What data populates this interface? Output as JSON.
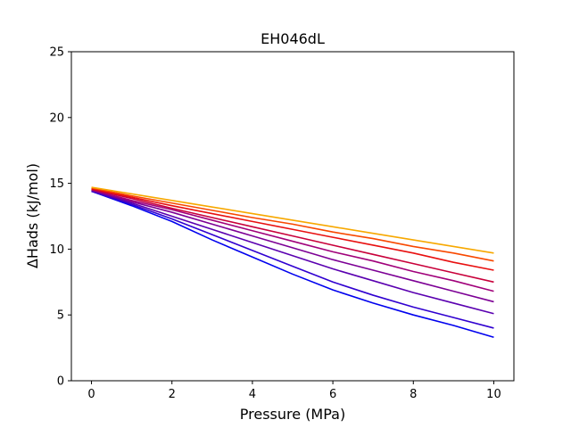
{
  "chart_data": {
    "type": "line",
    "title": "EH046dL",
    "xlabel": "Pressure (MPa)",
    "ylabel": "ΔHads (kJ/mol)",
    "xlim": [
      -0.5,
      10.5
    ],
    "ylim": [
      0,
      25
    ],
    "xticks": [
      0,
      2,
      4,
      6,
      8,
      10
    ],
    "yticks": [
      0,
      5,
      10,
      15,
      20,
      25
    ],
    "grid": false,
    "series": [
      {
        "color": "#0000ee",
        "x": [
          0,
          1,
          2,
          3,
          4,
          5,
          6,
          7,
          8,
          9,
          10
        ],
        "y": [
          14.4,
          13.3,
          12.1,
          10.7,
          9.4,
          8.1,
          6.9,
          5.9,
          5.0,
          4.2,
          3.3
        ]
      },
      {
        "color": "#3000d0",
        "x": [
          0,
          1,
          2,
          3,
          4,
          5,
          6,
          7,
          8,
          9,
          10
        ],
        "y": [
          14.4,
          13.4,
          12.3,
          11.1,
          9.9,
          8.7,
          7.5,
          6.5,
          5.6,
          4.8,
          4.0
        ]
      },
      {
        "color": "#5a00b0",
        "x": [
          0,
          1,
          2,
          3,
          4,
          5,
          6,
          7,
          8,
          9,
          10
        ],
        "y": [
          14.45,
          13.5,
          12.5,
          11.5,
          10.5,
          9.5,
          8.5,
          7.6,
          6.7,
          5.9,
          5.1
        ]
      },
      {
        "color": "#7c0095",
        "x": [
          0,
          1,
          2,
          3,
          4,
          5,
          6,
          7,
          8,
          9,
          10
        ],
        "y": [
          14.5,
          13.6,
          12.8,
          11.9,
          11.0,
          10.1,
          9.2,
          8.4,
          7.6,
          6.8,
          6.0
        ]
      },
      {
        "color": "#a0007a",
        "x": [
          0,
          1,
          2,
          3,
          4,
          5,
          6,
          7,
          8,
          9,
          10
        ],
        "y": [
          14.5,
          13.7,
          13.0,
          12.2,
          11.4,
          10.6,
          9.8,
          9.1,
          8.3,
          7.6,
          6.8
        ]
      },
      {
        "color": "#c8003a",
        "x": [
          0,
          1,
          2,
          3,
          4,
          5,
          6,
          7,
          8,
          9,
          10
        ],
        "y": [
          14.55,
          13.85,
          13.1,
          12.4,
          11.7,
          11.0,
          10.3,
          9.6,
          8.9,
          8.2,
          7.5
        ]
      },
      {
        "color": "#e81010",
        "x": [
          0,
          1,
          2,
          3,
          4,
          5,
          6,
          7,
          8,
          9,
          10
        ],
        "y": [
          14.6,
          13.95,
          13.3,
          12.7,
          12.1,
          11.5,
          10.9,
          10.3,
          9.7,
          9.0,
          8.4
        ]
      },
      {
        "color": "#f84800",
        "x": [
          0,
          1,
          2,
          3,
          4,
          5,
          6,
          7,
          8,
          9,
          10
        ],
        "y": [
          14.65,
          14.05,
          13.5,
          12.95,
          12.4,
          11.9,
          11.3,
          10.8,
          10.2,
          9.7,
          9.1
        ]
      },
      {
        "color": "#f7a800",
        "x": [
          0,
          1,
          2,
          3,
          4,
          5,
          6,
          7,
          8,
          9,
          10
        ],
        "y": [
          14.7,
          14.2,
          13.7,
          13.2,
          12.7,
          12.2,
          11.7,
          11.2,
          10.7,
          10.2,
          9.7
        ]
      }
    ]
  }
}
